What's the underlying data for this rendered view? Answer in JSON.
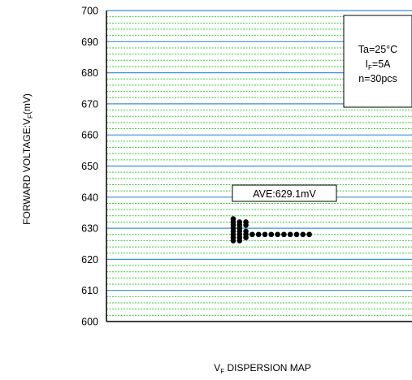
{
  "chart_data": {
    "type": "scatter",
    "title": "",
    "xlabel": {
      "main": "V",
      "sub": "F",
      "rest": " DISPERSION MAP"
    },
    "ylabel": {
      "main": "FORWARD VOLTAGE:V",
      "sub": "F",
      "rest": "(mV)"
    },
    "ylim": [
      600,
      700
    ],
    "y_ticks": [
      "600",
      "610",
      "620",
      "630",
      "640",
      "650",
      "660",
      "670",
      "680",
      "690",
      "700"
    ],
    "grid": {
      "major": true,
      "minor": true,
      "major_color": "#3b8fd6",
      "minor_color": "#33cc33"
    },
    "conditions": {
      "line1": "Ta=25°C",
      "line2_main": "I",
      "line2_sub": "F",
      "line2_rest": "=5A",
      "line3": "n=30pcs"
    },
    "average_label": "AVE:629.1mV",
    "distribution": [
      {
        "value": 626,
        "count": 2
      },
      {
        "value": 627,
        "count": 3
      },
      {
        "value": 628,
        "count": 13
      },
      {
        "value": 629,
        "count": 3
      },
      {
        "value": 630,
        "count": 2
      },
      {
        "value": 631,
        "count": 3
      },
      {
        "value": 632,
        "count": 3
      },
      {
        "value": 633,
        "count": 1
      }
    ],
    "point_color": "#000000"
  }
}
